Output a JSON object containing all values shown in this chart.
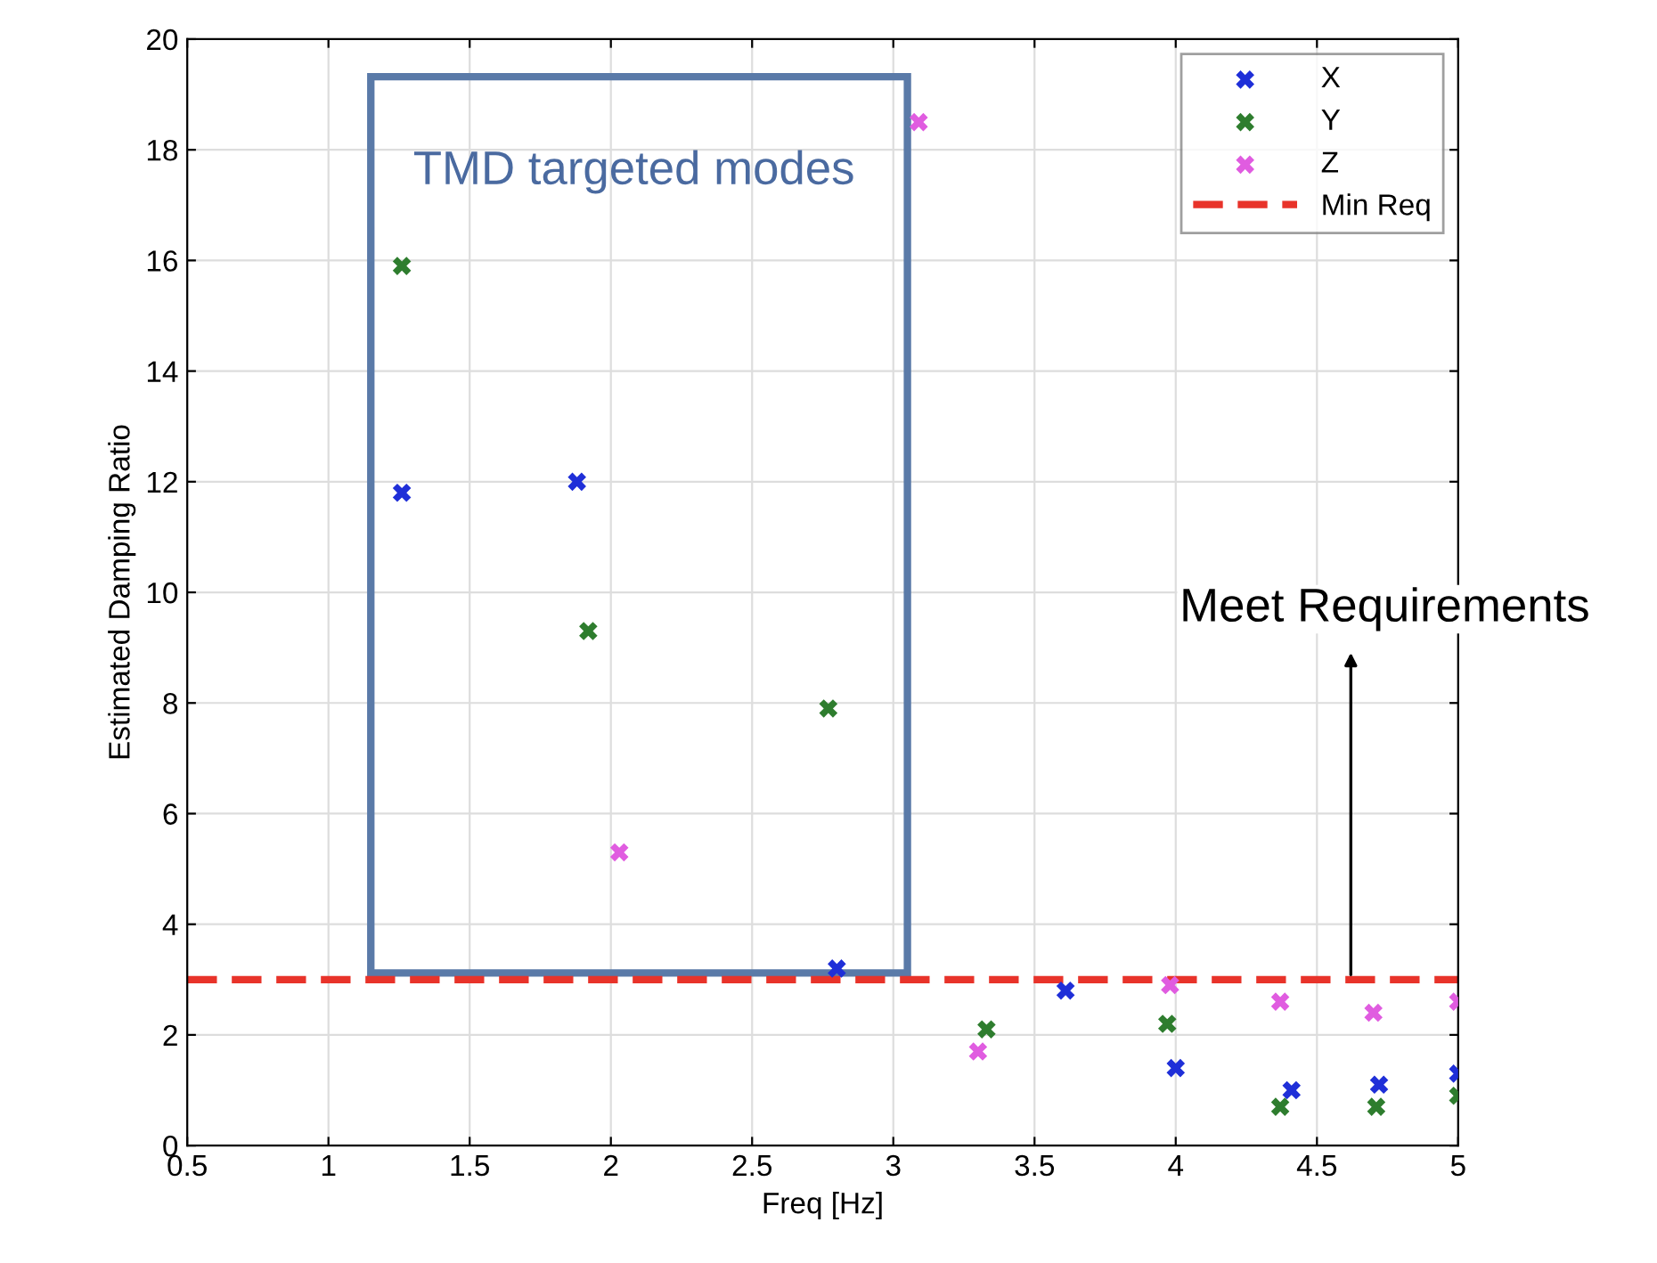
{
  "chart_data": {
    "type": "scatter",
    "xlabel": "Freq [Hz]",
    "ylabel": "Estimated Damping Ratio",
    "xlim": [
      0.5,
      5
    ],
    "xticks": [
      0.5,
      1,
      1.5,
      2,
      2.5,
      3,
      3.5,
      4,
      4.5,
      5
    ],
    "ylim": [
      0,
      20
    ],
    "yticks": [
      0,
      2,
      4,
      6,
      8,
      10,
      12,
      14,
      16,
      18,
      20
    ],
    "grid": true,
    "legend": "top right",
    "marker": "cross",
    "series": [
      {
        "name": "X",
        "color": "#1f2fd8",
        "x": [
          1.26,
          1.88,
          2.8,
          3.61,
          4.0,
          4.41,
          4.72,
          5.0
        ],
        "values": [
          11.8,
          12.0,
          3.2,
          2.8,
          1.4,
          1.0,
          1.1,
          1.3
        ]
      },
      {
        "name": "Y",
        "color": "#2e7d2e",
        "x": [
          1.26,
          1.92,
          2.77,
          3.33,
          3.97,
          4.37,
          4.71,
          5.0
        ],
        "values": [
          15.9,
          9.3,
          7.9,
          2.1,
          2.2,
          0.7,
          0.7,
          0.9
        ]
      },
      {
        "name": "Z",
        "color": "#e05ce0",
        "x": [
          3.09,
          2.03,
          3.3,
          3.98,
          4.37,
          4.7,
          5.0
        ],
        "values": [
          18.5,
          5.3,
          1.7,
          2.9,
          2.6,
          2.4,
          2.6
        ]
      }
    ],
    "ref_lines": [
      {
        "axis": "y",
        "value": 3,
        "label": "Min Req",
        "color": "#e8332a",
        "line_style": "dashed"
      }
    ],
    "annotations": [
      "TMD targeted modes",
      {
        "text": "Meet Requirements",
        "x": 4.62,
        "y": 3
      }
    ]
  }
}
